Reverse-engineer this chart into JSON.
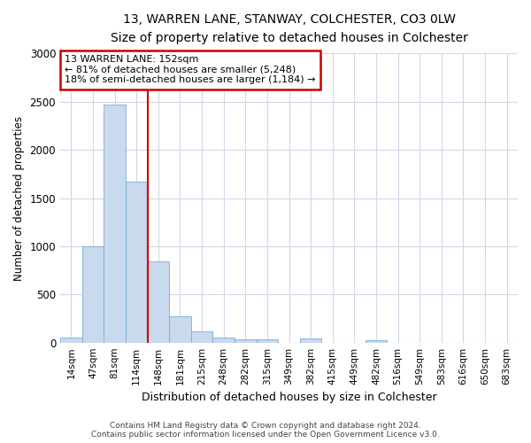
{
  "title1": "13, WARREN LANE, STANWAY, COLCHESTER, CO3 0LW",
  "title2": "Size of property relative to detached houses in Colchester",
  "xlabel": "Distribution of detached houses by size in Colchester",
  "ylabel": "Number of detached properties",
  "categories": [
    "14sqm",
    "47sqm",
    "81sqm",
    "114sqm",
    "148sqm",
    "181sqm",
    "215sqm",
    "248sqm",
    "282sqm",
    "315sqm",
    "349sqm",
    "382sqm",
    "415sqm",
    "449sqm",
    "482sqm",
    "516sqm",
    "549sqm",
    "583sqm",
    "616sqm",
    "650sqm",
    "683sqm"
  ],
  "values": [
    55,
    1000,
    2470,
    1670,
    840,
    275,
    120,
    55,
    35,
    35,
    0,
    40,
    0,
    0,
    25,
    0,
    0,
    0,
    0,
    0,
    0
  ],
  "bar_color": "#c9d9ee",
  "bar_edge_color": "#7aadd4",
  "vline_x": 4,
  "vline_color": "#cc0000",
  "annotation_text": "13 WARREN LANE: 152sqm\n← 81% of detached houses are smaller (5,248)\n18% of semi-detached houses are larger (1,184) →",
  "annotation_box_facecolor": "#ffffff",
  "annotation_box_edgecolor": "#cc0000",
  "ylim": [
    0,
    3000
  ],
  "yticks": [
    0,
    500,
    1000,
    1500,
    2000,
    2500,
    3000
  ],
  "footer1": "Contains HM Land Registry data © Crown copyright and database right 2024.",
  "footer2": "Contains public sector information licensed under the Open Government Licence v3.0.",
  "bg_color": "#ffffff",
  "grid_color": "#d0d8e8"
}
